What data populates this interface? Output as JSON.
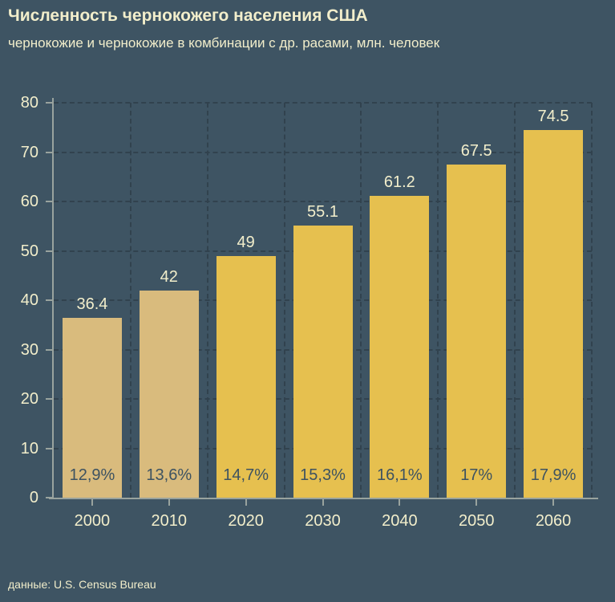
{
  "title": "Численность чернокожего населения США",
  "subtitle": "чернокожие и чернокожие в комбинации с др. расами, млн. человек",
  "source": "данные: U.S. Census Bureau",
  "colors": {
    "background": "#3e5463",
    "bar_historical": "#d9bb7d",
    "bar_projection": "#e6c04f",
    "text_cream": "#f2eecb",
    "percent_label": "#3d5261",
    "gridline": "#31424e",
    "axis": "#99a39e"
  },
  "chart_data": {
    "type": "bar",
    "title": "Численность чернокожего населения США",
    "subtitle": "чернокожие и чернокожие в комбинации с др. расами, млн. человек",
    "categories": [
      "2000",
      "2010",
      "2020",
      "2030",
      "2040",
      "2050",
      "2060"
    ],
    "values": [
      36.4,
      42,
      49,
      55.1,
      61.2,
      67.5,
      74.5
    ],
    "value_labels": [
      "36.4",
      "42",
      "49",
      "55.1",
      "61.2",
      "67.5",
      "74.5"
    ],
    "percent_labels": [
      "12,9%",
      "13,6%",
      "14,7%",
      "15,3%",
      "16,1%",
      "17%",
      "17,9%"
    ],
    "bar_styles": [
      "historical",
      "historical",
      "projection",
      "projection",
      "projection",
      "projection",
      "projection"
    ],
    "ylabel": "",
    "xlabel": "",
    "ylim": [
      0,
      80
    ],
    "ytick_step": 10,
    "yticks": [
      0,
      10,
      20,
      30,
      40,
      50,
      60,
      70,
      80
    ],
    "grid": "dashed horizontal and vertical",
    "legend": "none",
    "source": "данные: U.S. Census Bureau"
  }
}
